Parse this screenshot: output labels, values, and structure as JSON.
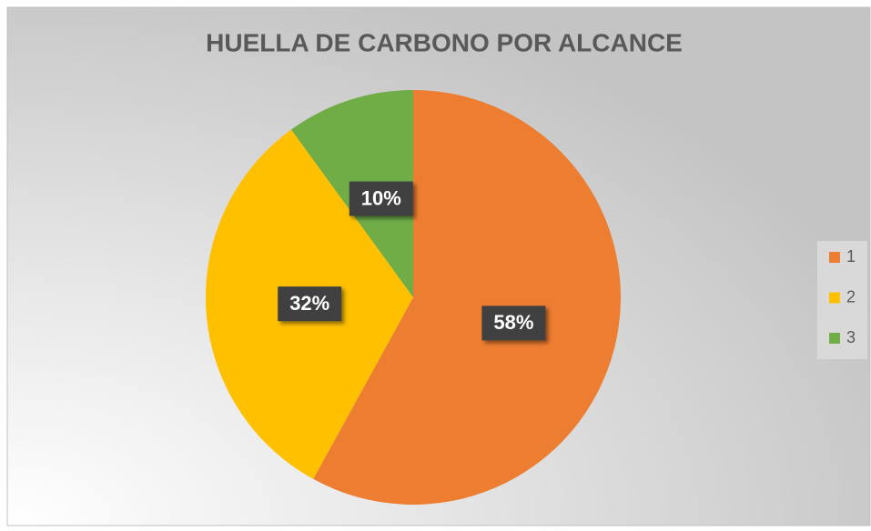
{
  "chart_data": {
    "type": "pie",
    "title": "HUELLA DE CARBONO POR ALCANCE",
    "categories": [
      "1",
      "2",
      "3"
    ],
    "values": [
      58,
      32,
      10
    ],
    "value_labels": [
      "58%",
      "32%",
      "10%"
    ],
    "colors": [
      "#ED7D31",
      "#FFC000",
      "#70AD47"
    ],
    "legend": "right"
  }
}
